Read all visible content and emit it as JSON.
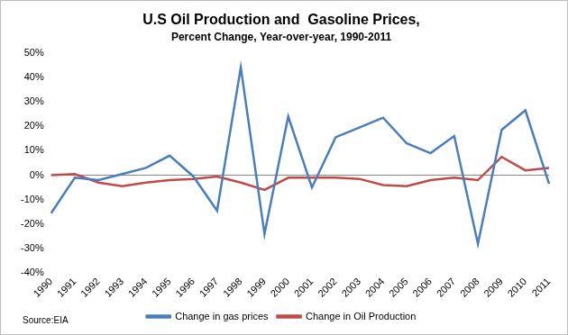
{
  "chart_data": {
    "type": "line",
    "title": "U.S Oil Production and  Gasoline Prices,",
    "subtitle": "Percent Change, Year-over-year, 1990-2011",
    "annotation": "Source:EIA",
    "categories": [
      "1990",
      "1991",
      "1992",
      "1993",
      "1994",
      "1995",
      "1996",
      "1997",
      "1998",
      "1999",
      "2000",
      "2001",
      "2002",
      "2003",
      "2004",
      "2005",
      "2006",
      "2007",
      "2008",
      "2009",
      "2010",
      "2011"
    ],
    "series": [
      {
        "name": "Change in gas prices",
        "color": "#4a7ebb",
        "values": [
          -15.5,
          -1,
          -2,
          0.5,
          3,
          8,
          -0.5,
          -14.5,
          44,
          -24,
          24,
          -5,
          15.5,
          19.5,
          23.5,
          13,
          9,
          16,
          -28,
          18.5,
          26.5,
          -3.5
        ]
      },
      {
        "name": "Change in Oil Production",
        "color": "#be4b48",
        "values": [
          0,
          0.5,
          -3,
          -4.5,
          -3,
          -2,
          -1.5,
          -0.5,
          -3,
          -6,
          -1,
          -1,
          -1,
          -1.5,
          -4,
          -4.5,
          -2,
          -1,
          -2,
          7.5,
          2,
          3
        ]
      }
    ],
    "ylim": [
      -40,
      50
    ],
    "yticks": [
      {
        "value": -40,
        "label": "-40%"
      },
      {
        "value": -30,
        "label": "-30%"
      },
      {
        "value": -20,
        "label": "-20%"
      },
      {
        "value": -10,
        "label": "-10%"
      },
      {
        "value": 0,
        "label": "0%"
      },
      {
        "value": 10,
        "label": "10%"
      },
      {
        "value": 20,
        "label": "20%"
      },
      {
        "value": 30,
        "label": "30%"
      },
      {
        "value": 40,
        "label": "40%"
      },
      {
        "value": 50,
        "label": "50%"
      }
    ],
    "grid": false,
    "legend": "bottom"
  }
}
